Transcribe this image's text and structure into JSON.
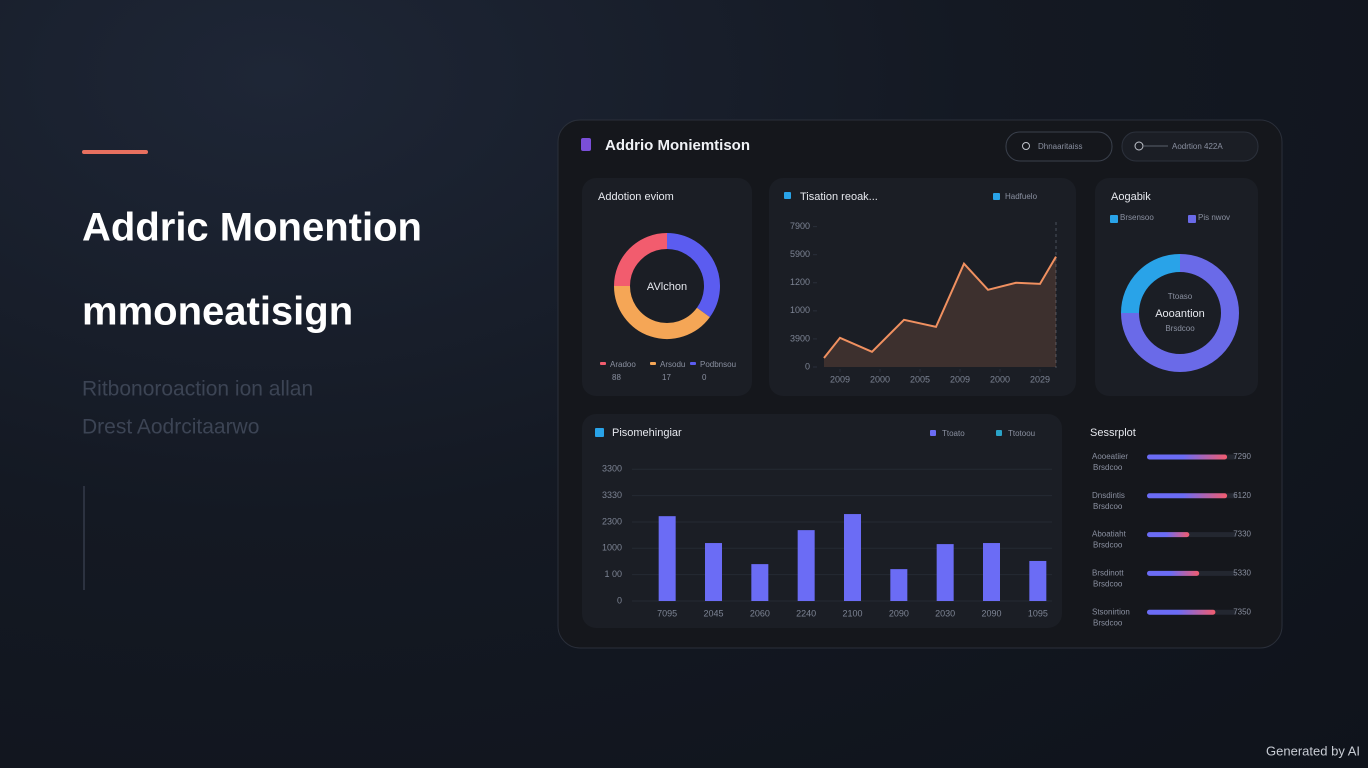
{
  "hero": {
    "title": [
      "Addric Monention",
      "mmoneatisign"
    ],
    "body": [
      "Ritbonoroaction ion allan",
      "Drest Aodrcitaarwo"
    ]
  },
  "dashboard": {
    "title": "Addrio Moniemtison",
    "buttons": [
      "Dhnaaritaiss",
      "Aodrtion 422A"
    ]
  },
  "chart_data": [
    {
      "type": "donut",
      "title": "Addotion eviom",
      "center_label": "AVlchon",
      "categories": [
        "Aradoo",
        "Podbnsou",
        "Arsodu"
      ],
      "values": [
        25,
        35,
        40
      ],
      "colors": [
        "#f25c6e",
        "#5b5cf0",
        "#f5a656"
      ],
      "legend_notes": [
        "88",
        "0",
        "17"
      ]
    },
    {
      "type": "line",
      "title": "Tisation reoak...",
      "x": [
        0.1,
        0.5,
        1.3,
        2.1,
        2.9,
        3.6,
        4.2,
        4.9,
        5.5,
        5.9
      ],
      "series": [
        {
          "name": "Hadfuelo",
          "color": "#f09060",
          "values": [
            320,
            1040,
            540,
            1680,
            1430,
            3680,
            2750,
            3000,
            2960,
            3930
          ]
        }
      ],
      "xlim": [
        0,
        6
      ],
      "xticks": [
        {
          "value": 0.5,
          "label": "2009"
        },
        {
          "value": 1.5,
          "label": "2000"
        },
        {
          "value": 2.5,
          "label": "2005"
        },
        {
          "value": 3.5,
          "label": "2009"
        },
        {
          "value": 4.5,
          "label": "2000"
        },
        {
          "value": 5.5,
          "label": "2029"
        }
      ],
      "ylim": [
        0,
        5200
      ],
      "yticks": [
        0,
        {
          "value": 1000,
          "label": "3900"
        },
        {
          "value": 2000,
          "label": "1000"
        },
        {
          "value": 3000,
          "label": "1200"
        },
        {
          "value": 4000,
          "label": "5900"
        },
        {
          "value": 5000,
          "label": "7900"
        }
      ]
    },
    {
      "type": "donut",
      "title": "Aogabik",
      "center_label": "Aooantion",
      "center_notes": [
        "Ttoaso",
        "Brsdcoo"
      ],
      "categories": [
        "Brsensoo",
        "Pis nwov"
      ],
      "values": [
        25,
        75
      ],
      "colors": [
        "#29a3e8",
        "#6a6ae8"
      ]
    },
    {
      "type": "bar",
      "title": "Pisomehingiar",
      "categories": [
        "7095",
        "2045",
        "2060",
        "2240",
        "2100",
        "2090",
        "2030",
        "2090",
        "1095"
      ],
      "values": [
        322,
        220,
        140,
        269,
        330,
        121,
        216,
        220,
        152
      ],
      "color": "#6b6cf5",
      "legend": [
        {
          "name": "Ttoato",
          "color": "#6b6cf5"
        },
        {
          "name": "Ttotoou",
          "color": "#2aa3c8"
        }
      ],
      "ylim": [
        0,
        520
      ],
      "yticks": [
        0,
        {
          "value": 100,
          "label": "1 00"
        },
        {
          "value": 200,
          "label": "1000"
        },
        {
          "value": 300,
          "label": "2300"
        },
        {
          "value": 400,
          "label": "3330"
        },
        {
          "value": 500,
          "label": "3300"
        }
      ],
      "grid": true
    }
  ],
  "progress": {
    "title": "Sessrplot",
    "max": 100,
    "items": [
      {
        "name": "Aooeatiier",
        "note": "Brsdcoo",
        "value": 89,
        "label": "7290"
      },
      {
        "name": "Dnsdintis",
        "note": "Brsdcoo",
        "value": 89,
        "label": "6120"
      },
      {
        "name": "Aboatiaht",
        "note": "Brsdcoo",
        "value": 47,
        "label": "7330"
      },
      {
        "name": "Brsdinott",
        "note": "Brsdcoo",
        "value": 58,
        "label": "5330"
      },
      {
        "name": "Stsonirtion",
        "note": "Brsdcoo",
        "value": 76,
        "label": "7350"
      }
    ]
  },
  "footer": "Generated by AI"
}
